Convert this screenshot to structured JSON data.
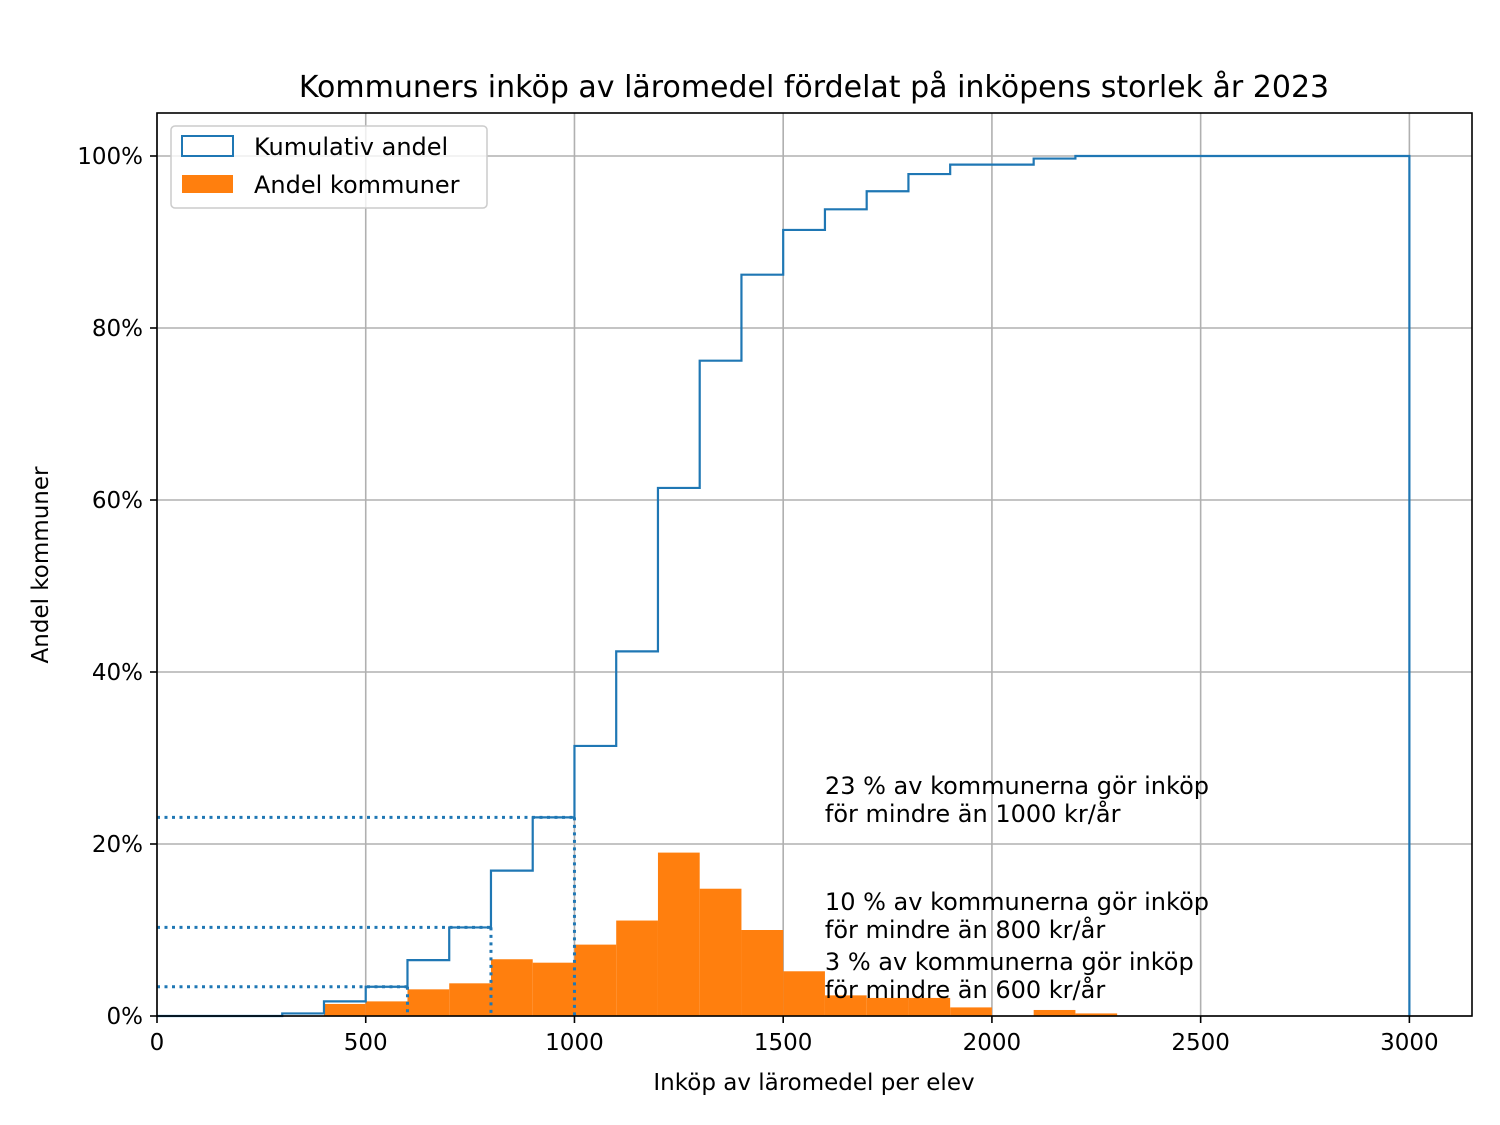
{
  "chart_data": {
    "type": "histogram",
    "title": "Kommuners inköp av läromedel fördelat på inköpens storlek år 2023",
    "xlabel": "Inköp av läromedel per elev",
    "ylabel": "Andel kommuner",
    "xlim": [
      0,
      3150
    ],
    "ylim": [
      0,
      1.05
    ],
    "x_ticks": [
      0,
      500,
      1000,
      1500,
      2000,
      2500,
      3000
    ],
    "x_tick_labels": [
      "0",
      "500",
      "1000",
      "1500",
      "2000",
      "2500",
      "3000"
    ],
    "y_ticks": [
      0,
      0.2,
      0.4,
      0.6,
      0.8,
      1.0
    ],
    "y_tick_labels": [
      "0%",
      "20%",
      "40%",
      "60%",
      "80%",
      "100%"
    ],
    "grid": true,
    "legend_position": "top-left",
    "bin_edges": [
      0,
      100,
      200,
      300,
      400,
      500,
      600,
      700,
      800,
      900,
      1000,
      1100,
      1200,
      1300,
      1400,
      1500,
      1600,
      1700,
      1800,
      1900,
      2000,
      2100,
      2200,
      2300,
      2400,
      2500,
      2600,
      2700,
      2800,
      2900,
      3000
    ],
    "series": [
      {
        "name": "Kumulativ andel",
        "style": "step",
        "color": "#1f77b4",
        "values": [
          0,
          0,
          0,
          0.003,
          0.017,
          0.034,
          0.065,
          0.103,
          0.169,
          0.231,
          0.314,
          0.424,
          0.614,
          0.762,
          0.862,
          0.914,
          0.938,
          0.959,
          0.979,
          0.99,
          0.99,
          0.997,
          1.0,
          1.0,
          1.0,
          1.0,
          1.0,
          1.0,
          1.0,
          1.0
        ]
      },
      {
        "name": "Andel kommuner",
        "style": "bar",
        "color": "#ff7f0e",
        "values": [
          0,
          0,
          0,
          0,
          0.014,
          0.017,
          0.031,
          0.038,
          0.066,
          0.062,
          0.083,
          0.111,
          0.19,
          0.148,
          0.1,
          0.052,
          0.024,
          0.021,
          0.021,
          0.01,
          0,
          0.007,
          0.003,
          0,
          0,
          0,
          0,
          0,
          0,
          0
        ]
      }
    ],
    "reference_lines": [
      {
        "x": 600,
        "y": 0.034
      },
      {
        "x": 800,
        "y": 0.103
      },
      {
        "x": 1000,
        "y": 0.231
      }
    ],
    "annotations": [
      {
        "x": 1600,
        "y": 0.27,
        "lines": [
          "23 % av kommunerna gör inköp",
          "för mindre än 1000 kr/år"
        ]
      },
      {
        "x": 1600,
        "y": 0.135,
        "lines": [
          "10 % av kommunerna gör inköp",
          "för mindre än 800 kr/år"
        ]
      },
      {
        "x": 1600,
        "y": 0.065,
        "lines": [
          "3 % av kommunerna gör inköp",
          "för mindre än 600 kr/år"
        ]
      }
    ]
  }
}
